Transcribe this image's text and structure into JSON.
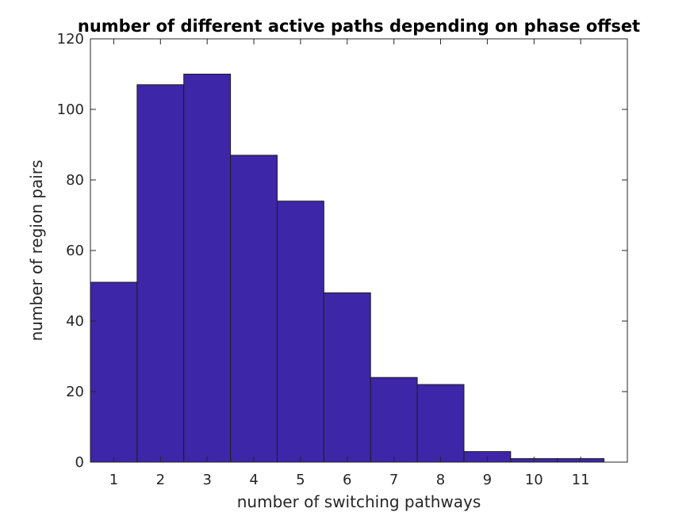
{
  "chart_data": {
    "type": "bar",
    "title": "number of different active paths depending on phase offset",
    "xlabel": "number of switching pathways",
    "ylabel": "number of region pairs",
    "categories": [
      "1",
      "2",
      "3",
      "4",
      "5",
      "6",
      "7",
      "8",
      "9",
      "10",
      "11"
    ],
    "values": [
      51,
      107,
      110,
      87,
      74,
      48,
      24,
      22,
      3,
      1,
      1
    ],
    "xlim": [
      0.5,
      12
    ],
    "ylim": [
      0,
      120
    ],
    "yticks": [
      0,
      20,
      40,
      60,
      80,
      100,
      120
    ],
    "grid": false,
    "box": true,
    "bar_color": "#3d26a8",
    "bar_edge_color": "#1e1e1e",
    "axis_color": "#262626"
  }
}
